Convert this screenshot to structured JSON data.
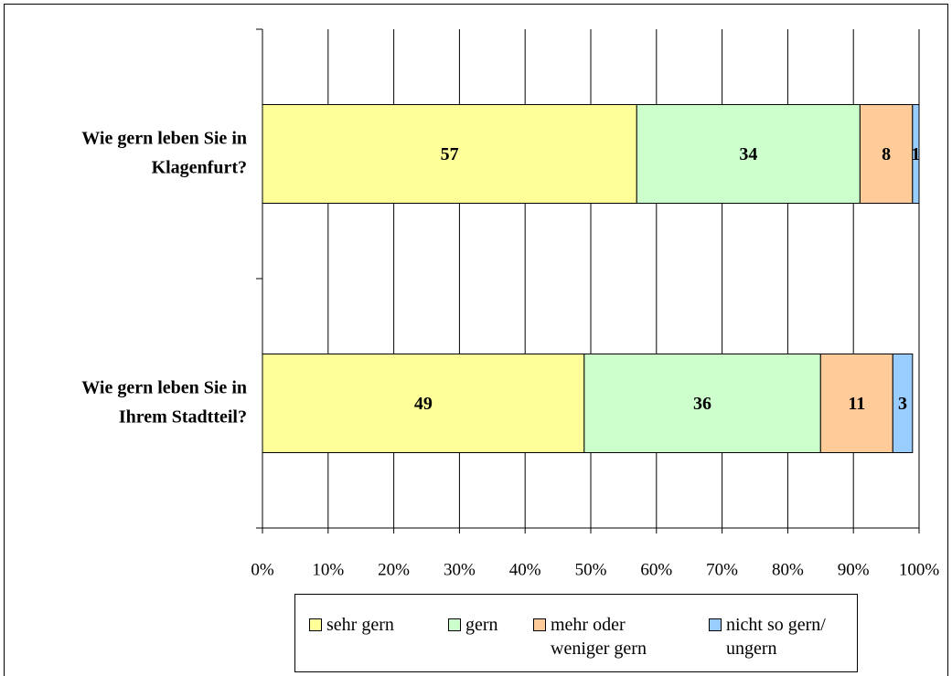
{
  "chart_data": {
    "type": "stacked-bar-horizontal",
    "categories": [
      [
        "Wie gern leben Sie in",
        "Klagenfurt?"
      ],
      [
        "Wie gern leben Sie in",
        "Ihrem Stadtteil?"
      ]
    ],
    "series": [
      {
        "name": "sehr gern",
        "color": "#ffff99",
        "values": [
          57,
          49
        ]
      },
      {
        "name": "gern",
        "color": "#ccffcc",
        "values": [
          34,
          36
        ]
      },
      {
        "name": "mehr oder weniger gern",
        "color": "#ffcc99",
        "values": [
          8,
          11
        ]
      },
      {
        "name": "nicht so gern/ ungern",
        "color": "#99ccff",
        "values": [
          1,
          3
        ]
      }
    ],
    "xlim": [
      0,
      100
    ],
    "xticks": [
      {
        "value": 0,
        "label": "0%"
      },
      {
        "value": 10,
        "label": "10%"
      },
      {
        "value": 20,
        "label": "20%"
      },
      {
        "value": 30,
        "label": "30%"
      },
      {
        "value": 40,
        "label": "40%"
      },
      {
        "value": 50,
        "label": "50%"
      },
      {
        "value": 60,
        "label": "60%"
      },
      {
        "value": 70,
        "label": "70%"
      },
      {
        "value": 80,
        "label": "80%"
      },
      {
        "value": 90,
        "label": "90%"
      },
      {
        "value": 100,
        "label": "100%"
      }
    ],
    "grid": true,
    "legend": "bottom"
  }
}
